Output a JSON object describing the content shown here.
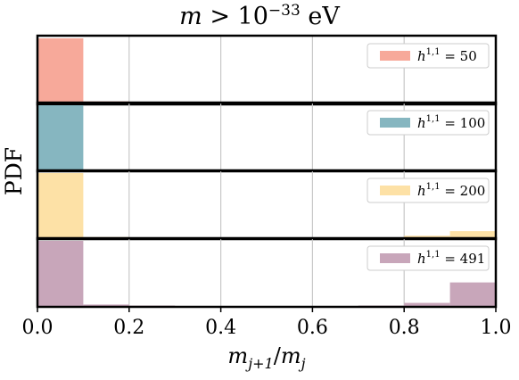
{
  "chart_data": {
    "type": "bar",
    "title": "m > 10⁻³³ eV",
    "title_parts": {
      "lhs": "m",
      "op": " > ",
      "base": "10",
      "exp": "−33",
      "unit": "eV"
    },
    "xlabel": "m_{j+1}/m_j",
    "xlabel_parts": {
      "m1": "m",
      "sub1": "j+1",
      "slash": "/",
      "m2": "m",
      "sub2": "j"
    },
    "ylabel": "PDF",
    "xlim": [
      0.0,
      1.0
    ],
    "xticks": [
      0.0,
      0.2,
      0.4,
      0.6,
      0.8,
      1.0
    ],
    "xtick_labels": [
      "0.0",
      "0.2",
      "0.4",
      "0.6",
      "0.8",
      "1.0"
    ],
    "grid": "vertical",
    "bin_edges": [
      0.0,
      0.1,
      0.2,
      0.3,
      0.4,
      0.5,
      0.6,
      0.7,
      0.8,
      0.9,
      1.0
    ],
    "legend_position": "top-right",
    "panels": [
      {
        "name": "h^{1,1} = 50",
        "legend_sup": "1,1",
        "legend_value": "50",
        "color": "#f7a99a",
        "ymax": 1.0,
        "values": [
          1.0,
          0.045,
          0.025,
          0.015,
          0.008,
          0.005,
          0.003,
          0.002,
          0.002,
          0.002
        ]
      },
      {
        "name": "h^{1,1} = 100",
        "legend_sup": "1,1",
        "legend_value": "100",
        "color": "#86b6c0",
        "ymax": 1.0,
        "values": [
          1.0,
          0.022,
          0.01,
          0.005,
          0.003,
          0.002,
          0.002,
          0.003,
          0.004,
          0.022
        ]
      },
      {
        "name": "h^{1,1} = 200",
        "legend_sup": "1,1",
        "legend_value": "200",
        "color": "#fde1a6",
        "ymax": 1.0,
        "values": [
          1.0,
          0.03,
          0.014,
          0.007,
          0.004,
          0.003,
          0.004,
          0.008,
          0.05,
          0.12
        ]
      },
      {
        "name": "h^{1,1} = 491",
        "legend_sup": "1,1",
        "legend_value": "491",
        "color": "#c8a6ba",
        "ymax": 1.0,
        "values": [
          1.0,
          0.035,
          0.02,
          0.01,
          0.006,
          0.005,
          0.008,
          0.02,
          0.06,
          0.37
        ]
      }
    ]
  }
}
